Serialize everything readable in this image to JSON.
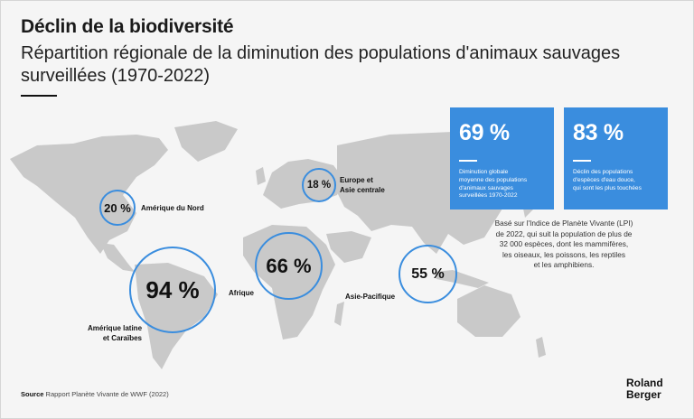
{
  "header": {
    "title": "Déclin de la biodiversité",
    "subtitle": "Répartition régionale de la diminution des populations d'animaux sauvages surveillées (1970-2022)"
  },
  "chart_data": {
    "type": "map",
    "title": "Déclin de la biodiversité",
    "subtitle": "Répartition régionale de la diminution des populations d'animaux sauvages surveillées (1970-2022)",
    "unit": "%",
    "regions": [
      {
        "key": "na",
        "name": "Amérique du Nord",
        "value": 20,
        "display": "20 %"
      },
      {
        "key": "eu",
        "name": "Europe et Asie centrale",
        "name_line1": "Europe et",
        "name_line2": "Asie centrale",
        "value": 18,
        "display": "18 %"
      },
      {
        "key": "af",
        "name": "Afrique",
        "value": 66,
        "display": "66 %"
      },
      {
        "key": "la",
        "name": "Amérique latine et Caraïbes",
        "name_line1": "Amérique latine",
        "name_line2": "et Caraïbes",
        "value": 94,
        "display": "94 %"
      },
      {
        "key": "ap",
        "name": "Asie-Pacifique",
        "value": 55,
        "display": "55 %"
      }
    ]
  },
  "stats": [
    {
      "value": "69 %",
      "line1": "Diminution globale",
      "line2": "moyenne des populations",
      "line3": "d'animaux sauvages",
      "line4": "surveillées 1970-2022"
    },
    {
      "value": "83 %",
      "line1": "Déclin des populations",
      "line2": "d'espèces d'eau douce,",
      "line3": "qui sont les plus touchées"
    }
  ],
  "note": {
    "line1": "Basé sur l'Indice de Planète Vivante (LPI)",
    "line2": "de 2022, qui suit la population de plus de",
    "line3": "32 000 espèces, dont les mammifères,",
    "line4": "les oiseaux, les poissons, les reptiles",
    "line5": "et les amphibiens."
  },
  "source": {
    "label": "Source",
    "text": "Rapport Planète Vivante de WWF (2022)"
  },
  "logo": {
    "line1": "Roland",
    "line2": "Berger"
  },
  "colors": {
    "accent": "#3a8dde",
    "land": "#c9c9c9",
    "background": "#f5f5f5"
  }
}
